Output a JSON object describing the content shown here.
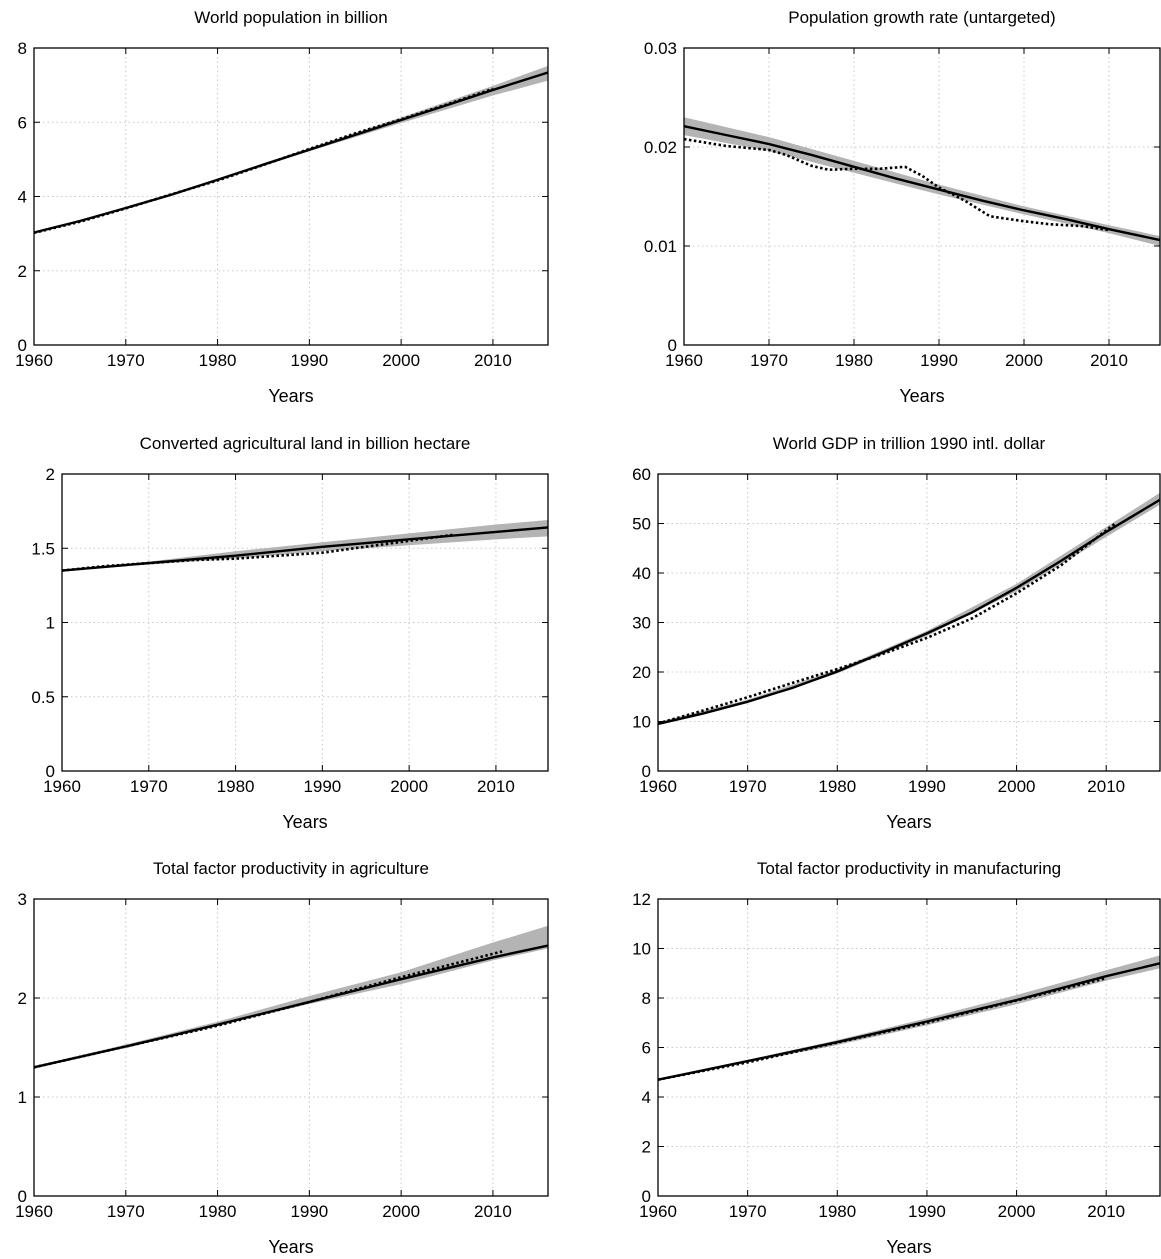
{
  "chart_data": [
    {
      "type": "line",
      "title": "World population in billion",
      "xlabel": "Years",
      "ylabel": "",
      "xlim": [
        1960,
        2016
      ],
      "ylim": [
        0,
        8
      ],
      "xticks": [
        1960,
        1970,
        1980,
        1990,
        2000,
        2010
      ],
      "yticks": [
        0,
        2,
        4,
        6,
        8
      ],
      "ytick_labels": [
        "0",
        "2",
        "4",
        "6",
        "8"
      ],
      "grid": true,
      "series": [
        {
          "style": "band",
          "x": [
            1960,
            1970,
            1980,
            1990,
            2000,
            2010,
            2016
          ],
          "lower": [
            3.03,
            3.68,
            4.43,
            5.22,
            5.98,
            6.72,
            7.12
          ],
          "upper": [
            3.03,
            3.7,
            4.47,
            5.3,
            6.13,
            6.98,
            7.52
          ]
        },
        {
          "style": "solid",
          "x": [
            1960,
            1965,
            1970,
            1975,
            1980,
            1985,
            1990,
            1995,
            2000,
            2005,
            2010,
            2016
          ],
          "y": [
            3.03,
            3.34,
            3.69,
            4.05,
            4.45,
            4.86,
            5.26,
            5.66,
            6.06,
            6.46,
            6.87,
            7.34
          ]
        },
        {
          "style": "dotted",
          "x": [
            1960,
            1965,
            1970,
            1975,
            1980,
            1985,
            1990,
            1995,
            2000,
            2005,
            2010
          ],
          "y": [
            3.02,
            3.32,
            3.68,
            4.06,
            4.43,
            4.85,
            5.28,
            5.7,
            6.08,
            6.48,
            6.9
          ]
        }
      ]
    },
    {
      "type": "line",
      "title": "Population growth rate (untargeted)",
      "xlabel": "Years",
      "ylabel": "",
      "xlim": [
        1960,
        2016
      ],
      "ylim": [
        0,
        0.03
      ],
      "xticks": [
        1960,
        1970,
        1980,
        1990,
        2000,
        2010
      ],
      "yticks": [
        0,
        0.01,
        0.02,
        0.03
      ],
      "ytick_labels": [
        "0",
        "0.01",
        "0.02",
        "0.03"
      ],
      "grid": true,
      "series": [
        {
          "style": "band",
          "x": [
            1960,
            1970,
            1980,
            1990,
            2000,
            2010,
            2016
          ],
          "lower": [
            0.0212,
            0.0196,
            0.0174,
            0.0152,
            0.0132,
            0.0113,
            0.01
          ],
          "upper": [
            0.023,
            0.021,
            0.0186,
            0.0162,
            0.014,
            0.0121,
            0.011
          ]
        },
        {
          "style": "solid",
          "x": [
            1960,
            1965,
            1970,
            1975,
            1980,
            1985,
            1990,
            1995,
            2000,
            2005,
            2010,
            2016
          ],
          "y": [
            0.0221,
            0.0212,
            0.0203,
            0.0192,
            0.018,
            0.0168,
            0.0157,
            0.0146,
            0.0136,
            0.0127,
            0.0117,
            0.0106
          ]
        },
        {
          "style": "dotted",
          "x": [
            1960,
            1965,
            1970,
            1972,
            1975,
            1977,
            1980,
            1983,
            1986,
            1988,
            1990,
            1993,
            1996,
            2000,
            2003,
            2007,
            2010
          ],
          "y": [
            0.0208,
            0.0201,
            0.0197,
            0.0192,
            0.0181,
            0.0177,
            0.0178,
            0.0178,
            0.018,
            0.0171,
            0.0159,
            0.0146,
            0.013,
            0.0125,
            0.0122,
            0.012,
            0.0116
          ]
        }
      ]
    },
    {
      "type": "line",
      "title": "Converted agricultural land in billion hectare",
      "xlabel": "Years",
      "ylabel": "",
      "xlim": [
        1960,
        2016
      ],
      "ylim": [
        0,
        2
      ],
      "xticks": [
        1960,
        1970,
        1980,
        1990,
        2000,
        2010
      ],
      "yticks": [
        0,
        0.5,
        1,
        1.5,
        2
      ],
      "ytick_labels": [
        "0",
        "0.5",
        "1",
        "1.5",
        "2"
      ],
      "grid": true,
      "series": [
        {
          "style": "band",
          "x": [
            1960,
            1970,
            1980,
            1990,
            2000,
            2010,
            2016
          ],
          "lower": [
            1.35,
            1.39,
            1.43,
            1.48,
            1.52,
            1.56,
            1.58
          ],
          "upper": [
            1.35,
            1.41,
            1.48,
            1.54,
            1.6,
            1.66,
            1.69
          ]
        },
        {
          "style": "solid",
          "x": [
            1960,
            1970,
            1980,
            1990,
            2000,
            2010,
            2016
          ],
          "y": [
            1.35,
            1.4,
            1.45,
            1.51,
            1.56,
            1.61,
            1.64
          ]
        },
        {
          "style": "dotted",
          "x": [
            1960,
            1965,
            1970,
            1975,
            1980,
            1985,
            1990,
            1995,
            2000,
            2005
          ],
          "y": [
            1.35,
            1.38,
            1.4,
            1.42,
            1.43,
            1.45,
            1.47,
            1.51,
            1.55,
            1.59
          ]
        }
      ]
    },
    {
      "type": "line",
      "title": "World GDP in trillion 1990 intl. dollar",
      "xlabel": "Years",
      "ylabel": "",
      "xlim": [
        1960,
        2016
      ],
      "ylim": [
        0,
        60
      ],
      "xticks": [
        1960,
        1970,
        1980,
        1990,
        2000,
        2010
      ],
      "yticks": [
        0,
        10,
        20,
        30,
        40,
        50,
        60
      ],
      "ytick_labels": [
        "0",
        "10",
        "20",
        "30",
        "40",
        "50",
        "60"
      ],
      "grid": true,
      "series": [
        {
          "style": "band",
          "x": [
            1960,
            1970,
            1980,
            1990,
            2000,
            2010,
            2016
          ],
          "lower": [
            9.3,
            13.7,
            19.7,
            27.3,
            36.3,
            47.3,
            53.8
          ],
          "upper": [
            9.9,
            14.4,
            20.5,
            28.3,
            37.8,
            49.3,
            56.2
          ]
        },
        {
          "style": "solid",
          "x": [
            1960,
            1965,
            1970,
            1975,
            1980,
            1985,
            1990,
            1995,
            2000,
            2005,
            2010,
            2016
          ],
          "y": [
            9.5,
            11.6,
            14.0,
            16.8,
            20.1,
            23.9,
            27.8,
            32.0,
            37.0,
            42.5,
            48.3,
            54.8
          ]
        },
        {
          "style": "dotted",
          "x": [
            1960,
            1965,
            1970,
            1975,
            1980,
            1985,
            1990,
            1995,
            2000,
            2005,
            2011
          ],
          "y": [
            9.6,
            12.2,
            14.9,
            17.8,
            20.6,
            23.6,
            26.9,
            30.8,
            35.9,
            41.6,
            50.0
          ]
        }
      ]
    },
    {
      "type": "line",
      "title": "Total factor productivity in agriculture",
      "xlabel": "Years",
      "ylabel": "",
      "xlim": [
        1960,
        2016
      ],
      "ylim": [
        0,
        3
      ],
      "xticks": [
        1960,
        1970,
        1980,
        1990,
        2000,
        2010
      ],
      "yticks": [
        0,
        1,
        2,
        3
      ],
      "ytick_labels": [
        "0",
        "1",
        "2",
        "3"
      ],
      "grid": true,
      "series": [
        {
          "style": "band",
          "x": [
            1960,
            1970,
            1980,
            1990,
            2000,
            2010,
            2016
          ],
          "lower": [
            1.3,
            1.51,
            1.72,
            1.94,
            2.14,
            2.38,
            2.5
          ],
          "upper": [
            1.31,
            1.53,
            1.76,
            2.02,
            2.26,
            2.56,
            2.73
          ]
        },
        {
          "style": "solid",
          "x": [
            1960,
            1970,
            1980,
            1990,
            2000,
            2010,
            2016
          ],
          "y": [
            1.3,
            1.51,
            1.73,
            1.96,
            2.19,
            2.41,
            2.53
          ]
        },
        {
          "style": "dotted",
          "x": [
            1960,
            1970,
            1980,
            1990,
            2000,
            2011
          ],
          "y": [
            1.3,
            1.51,
            1.72,
            1.96,
            2.21,
            2.47
          ]
        }
      ]
    },
    {
      "type": "line",
      "title": "Total factor productivity in manufacturing",
      "xlabel": "Years",
      "ylabel": "",
      "xlim": [
        1960,
        2016
      ],
      "ylim": [
        0,
        12
      ],
      "xticks": [
        1960,
        1970,
        1980,
        1990,
        2000,
        2010
      ],
      "yticks": [
        0,
        2,
        4,
        6,
        8,
        10,
        12
      ],
      "ytick_labels": [
        "0",
        "2",
        "4",
        "6",
        "8",
        "10",
        "12"
      ],
      "grid": true,
      "series": [
        {
          "style": "band",
          "x": [
            1960,
            1970,
            1980,
            1990,
            2000,
            2010,
            2016
          ],
          "lower": [
            4.7,
            5.4,
            6.1,
            6.9,
            7.75,
            8.7,
            9.2
          ],
          "upper": [
            4.72,
            5.5,
            6.3,
            7.18,
            8.12,
            9.12,
            9.72
          ]
        },
        {
          "style": "solid",
          "x": [
            1960,
            1970,
            1980,
            1990,
            2000,
            2010,
            2016
          ],
          "y": [
            4.7,
            5.45,
            6.22,
            7.05,
            7.92,
            8.88,
            9.4
          ]
        },
        {
          "style": "dotted",
          "x": [
            1960,
            1970,
            1980,
            1990,
            2000,
            2010
          ],
          "y": [
            4.7,
            5.4,
            6.2,
            7.0,
            7.9,
            8.8
          ]
        }
      ]
    }
  ]
}
